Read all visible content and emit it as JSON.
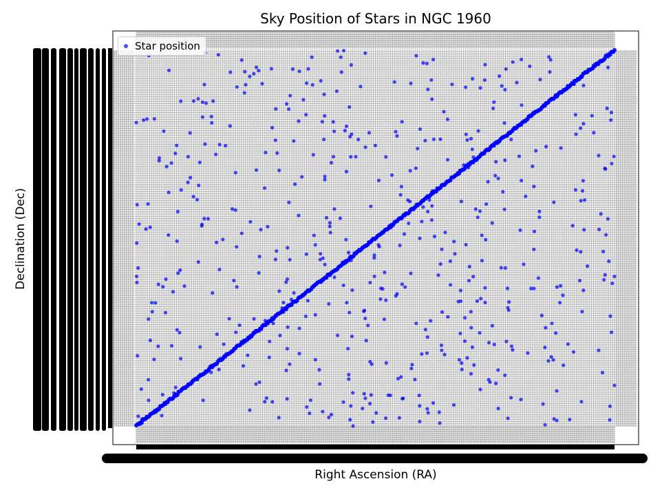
{
  "chart_data": {
    "type": "scatter",
    "title": "Sky Position of Stars in NGC 1960",
    "xlabel": "Right Ascension (RA)",
    "ylabel": "Declination (Dec)",
    "grid": true,
    "legend_placement": "top-left",
    "tick_labels": "illegible (overlapping categorical labels rendered as solid black bands)",
    "series": [
      {
        "name": "Star position",
        "color": "#0000ff",
        "alpha": 0.7,
        "marker": "circle",
        "note": "Categorical axes: ~1000 stars; x/y are category indices 0-1000 (approximate reconstruction). The dense diagonal band consists of stars whose RA and Dec categories are equal.",
        "diagonal": {
          "x_range": [
            0,
            1000
          ],
          "y_range": [
            0,
            1000
          ],
          "count": 440
        },
        "scatter_points_sample": [
          [
            300,
            972
          ],
          [
            420,
            905
          ],
          [
            560,
            880
          ],
          [
            780,
            640
          ],
          [
            120,
            540
          ],
          [
            650,
            310
          ],
          [
            880,
            760
          ],
          [
            210,
            220
          ],
          [
            470,
            140
          ],
          [
            830,
            90
          ]
        ],
        "scatter_count": 560
      }
    ]
  },
  "colors": {
    "points": "#0000ff",
    "grid": "#b0b0b0",
    "tick_bands": "#000000",
    "axes_frame": "#000000"
  }
}
